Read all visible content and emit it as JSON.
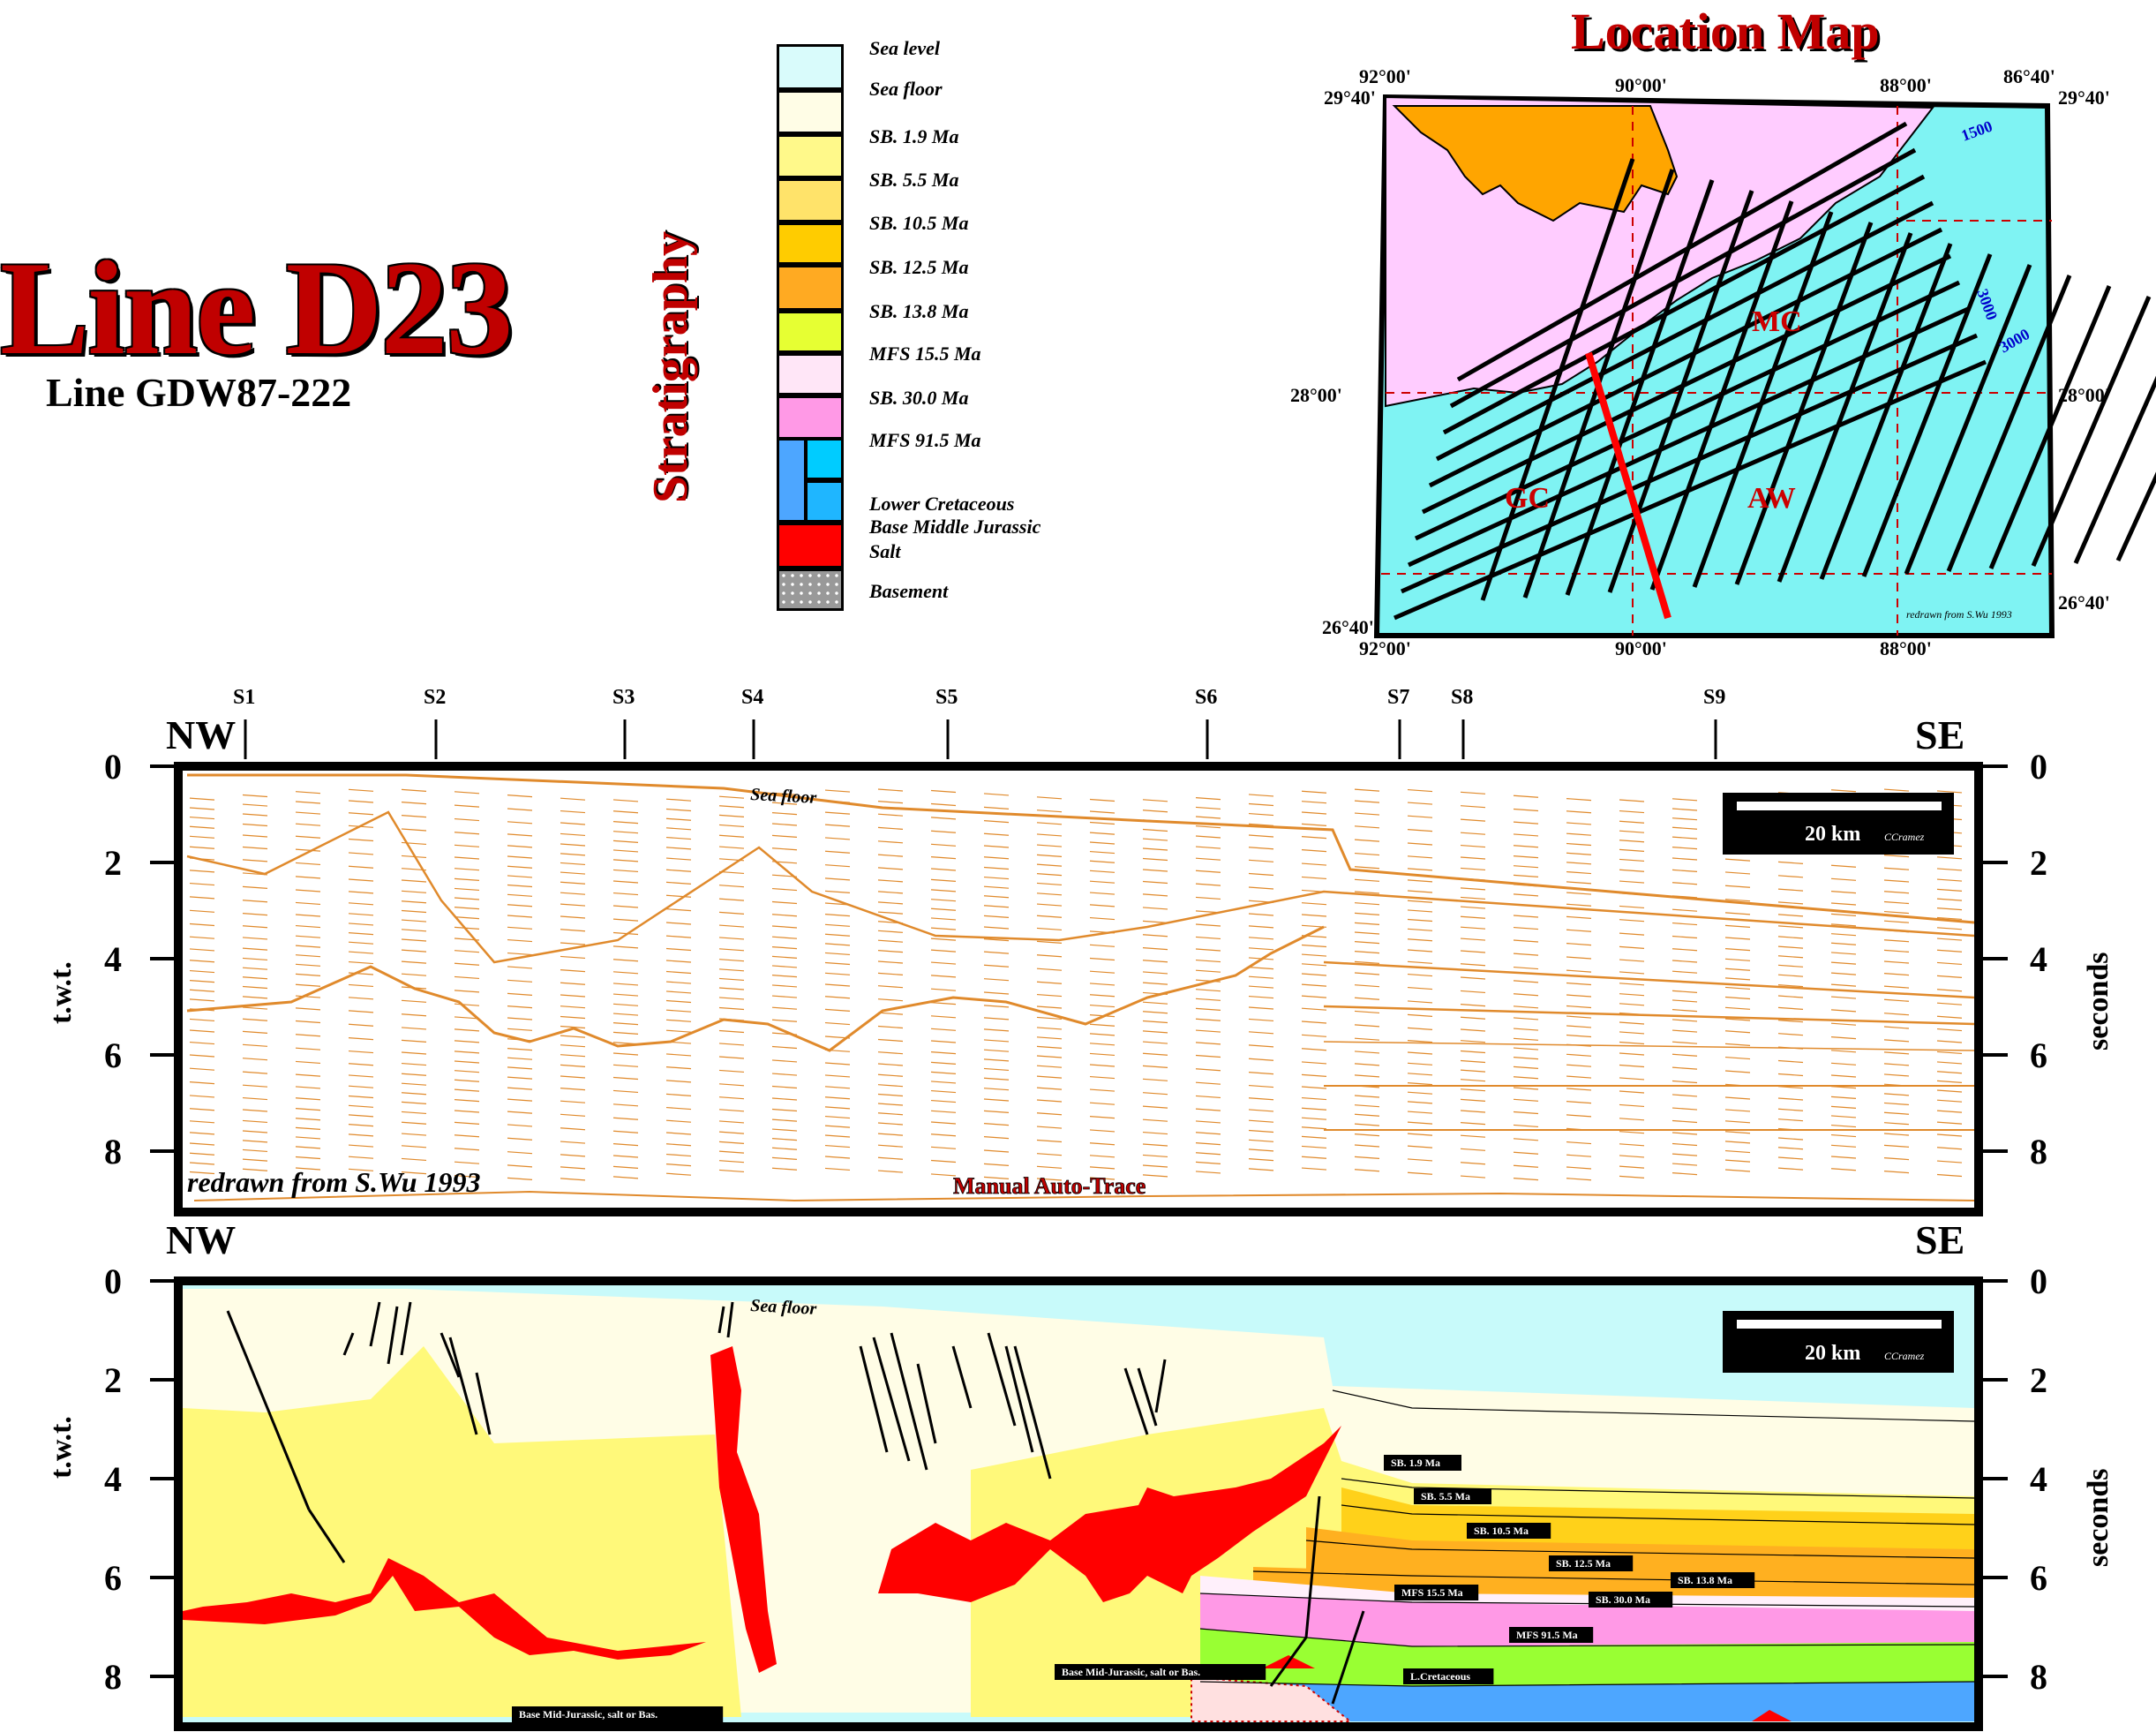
{
  "header": {
    "title": "Line D23",
    "subtitle": "Line GDW87-222"
  },
  "stratigraphy": {
    "label": "Stratigraphy",
    "units": [
      {
        "name": "Sea level",
        "color": "#d9fbfb"
      },
      {
        "name": "Sea floor",
        "color": "#fffde6"
      },
      {
        "name": "SB. 1.9 Ma",
        "color": "#fff98a"
      },
      {
        "name": "SB. 5.5 Ma",
        "color": "#ffe36a"
      },
      {
        "name": "SB. 10.5 Ma",
        "color": "#ffcc00"
      },
      {
        "name": "SB. 12.5 Ma",
        "color": "#ffaa22"
      },
      {
        "name": "SB. 13.8 Ma",
        "color": "#e6ff33"
      },
      {
        "name": "MFS 15.5 Ma",
        "color": "#ffe6f7"
      },
      {
        "name": "SB. 30.0 Ma",
        "color": "#ff99e6"
      },
      {
        "name": "MFS 91.5 Ma",
        "color": "#99ff33"
      },
      {
        "name": "Lower Cretaceous",
        "color": "#4da6ff"
      },
      {
        "name": "Base Middle Jurassic",
        "color": "#00ccff"
      },
      {
        "name": "Salt",
        "color": "#ff0000"
      },
      {
        "name": "Basement",
        "color": "#999999"
      }
    ]
  },
  "location_map": {
    "title": "Location Map",
    "lon_top": [
      "92°00'",
      "90°00'",
      "88°00'",
      "86°40'"
    ],
    "lon_bottom": [
      "92°00'",
      "90°00'",
      "88°00'"
    ],
    "lat_left": [
      "29°40'",
      "28°00'",
      "26°40'"
    ],
    "lat_right": [
      "29°40'",
      "28°00'",
      "26°40'"
    ],
    "region_labels": [
      "MC",
      "GC",
      "AW"
    ],
    "contours": [
      "1500",
      "3000",
      "3000"
    ],
    "credit": "redrawn from S.Wu 1993"
  },
  "seismic_panel": {
    "directions": {
      "left": "NW",
      "right": "SE"
    },
    "crossing_lines": [
      "S1",
      "S2",
      "S3",
      "S4",
      "S5",
      "S6",
      "S7",
      "S8",
      "S9"
    ],
    "y_ticks": [
      "0",
      "2",
      "4",
      "6",
      "8"
    ],
    "y_label_left": "t.w.t.",
    "y_label_right": "seconds",
    "scale_bar": "20 km",
    "scale_credit": "CCramez",
    "sea_floor_label": "Sea floor",
    "credit": "redrawn from S.Wu 1993",
    "trace_label": "Manual Auto-Trace"
  },
  "interpreted_panel": {
    "directions": {
      "left": "NW",
      "right": "SE"
    },
    "y_ticks": [
      "0",
      "2",
      "4",
      "6",
      "8"
    ],
    "y_label_left": "t.w.t.",
    "y_label_right": "seconds",
    "scale_bar": "20 km",
    "scale_credit": "CCramez",
    "sea_floor_label": "Sea floor",
    "horizon_labels": [
      "SB. 1.9 Ma",
      "SB. 5.5 Ma",
      "SB. 10.5 Ma",
      "SB. 12.5 Ma",
      "SB. 13.8 Ma",
      "MFS 15.5 Ma",
      "SB. 30.0 Ma",
      "MFS 91.5 Ma",
      "L.Cretaceous",
      "Base Mid-Jurassic, salt or Bas.",
      "Base Mid-Jurassic, salt or Bas."
    ]
  }
}
